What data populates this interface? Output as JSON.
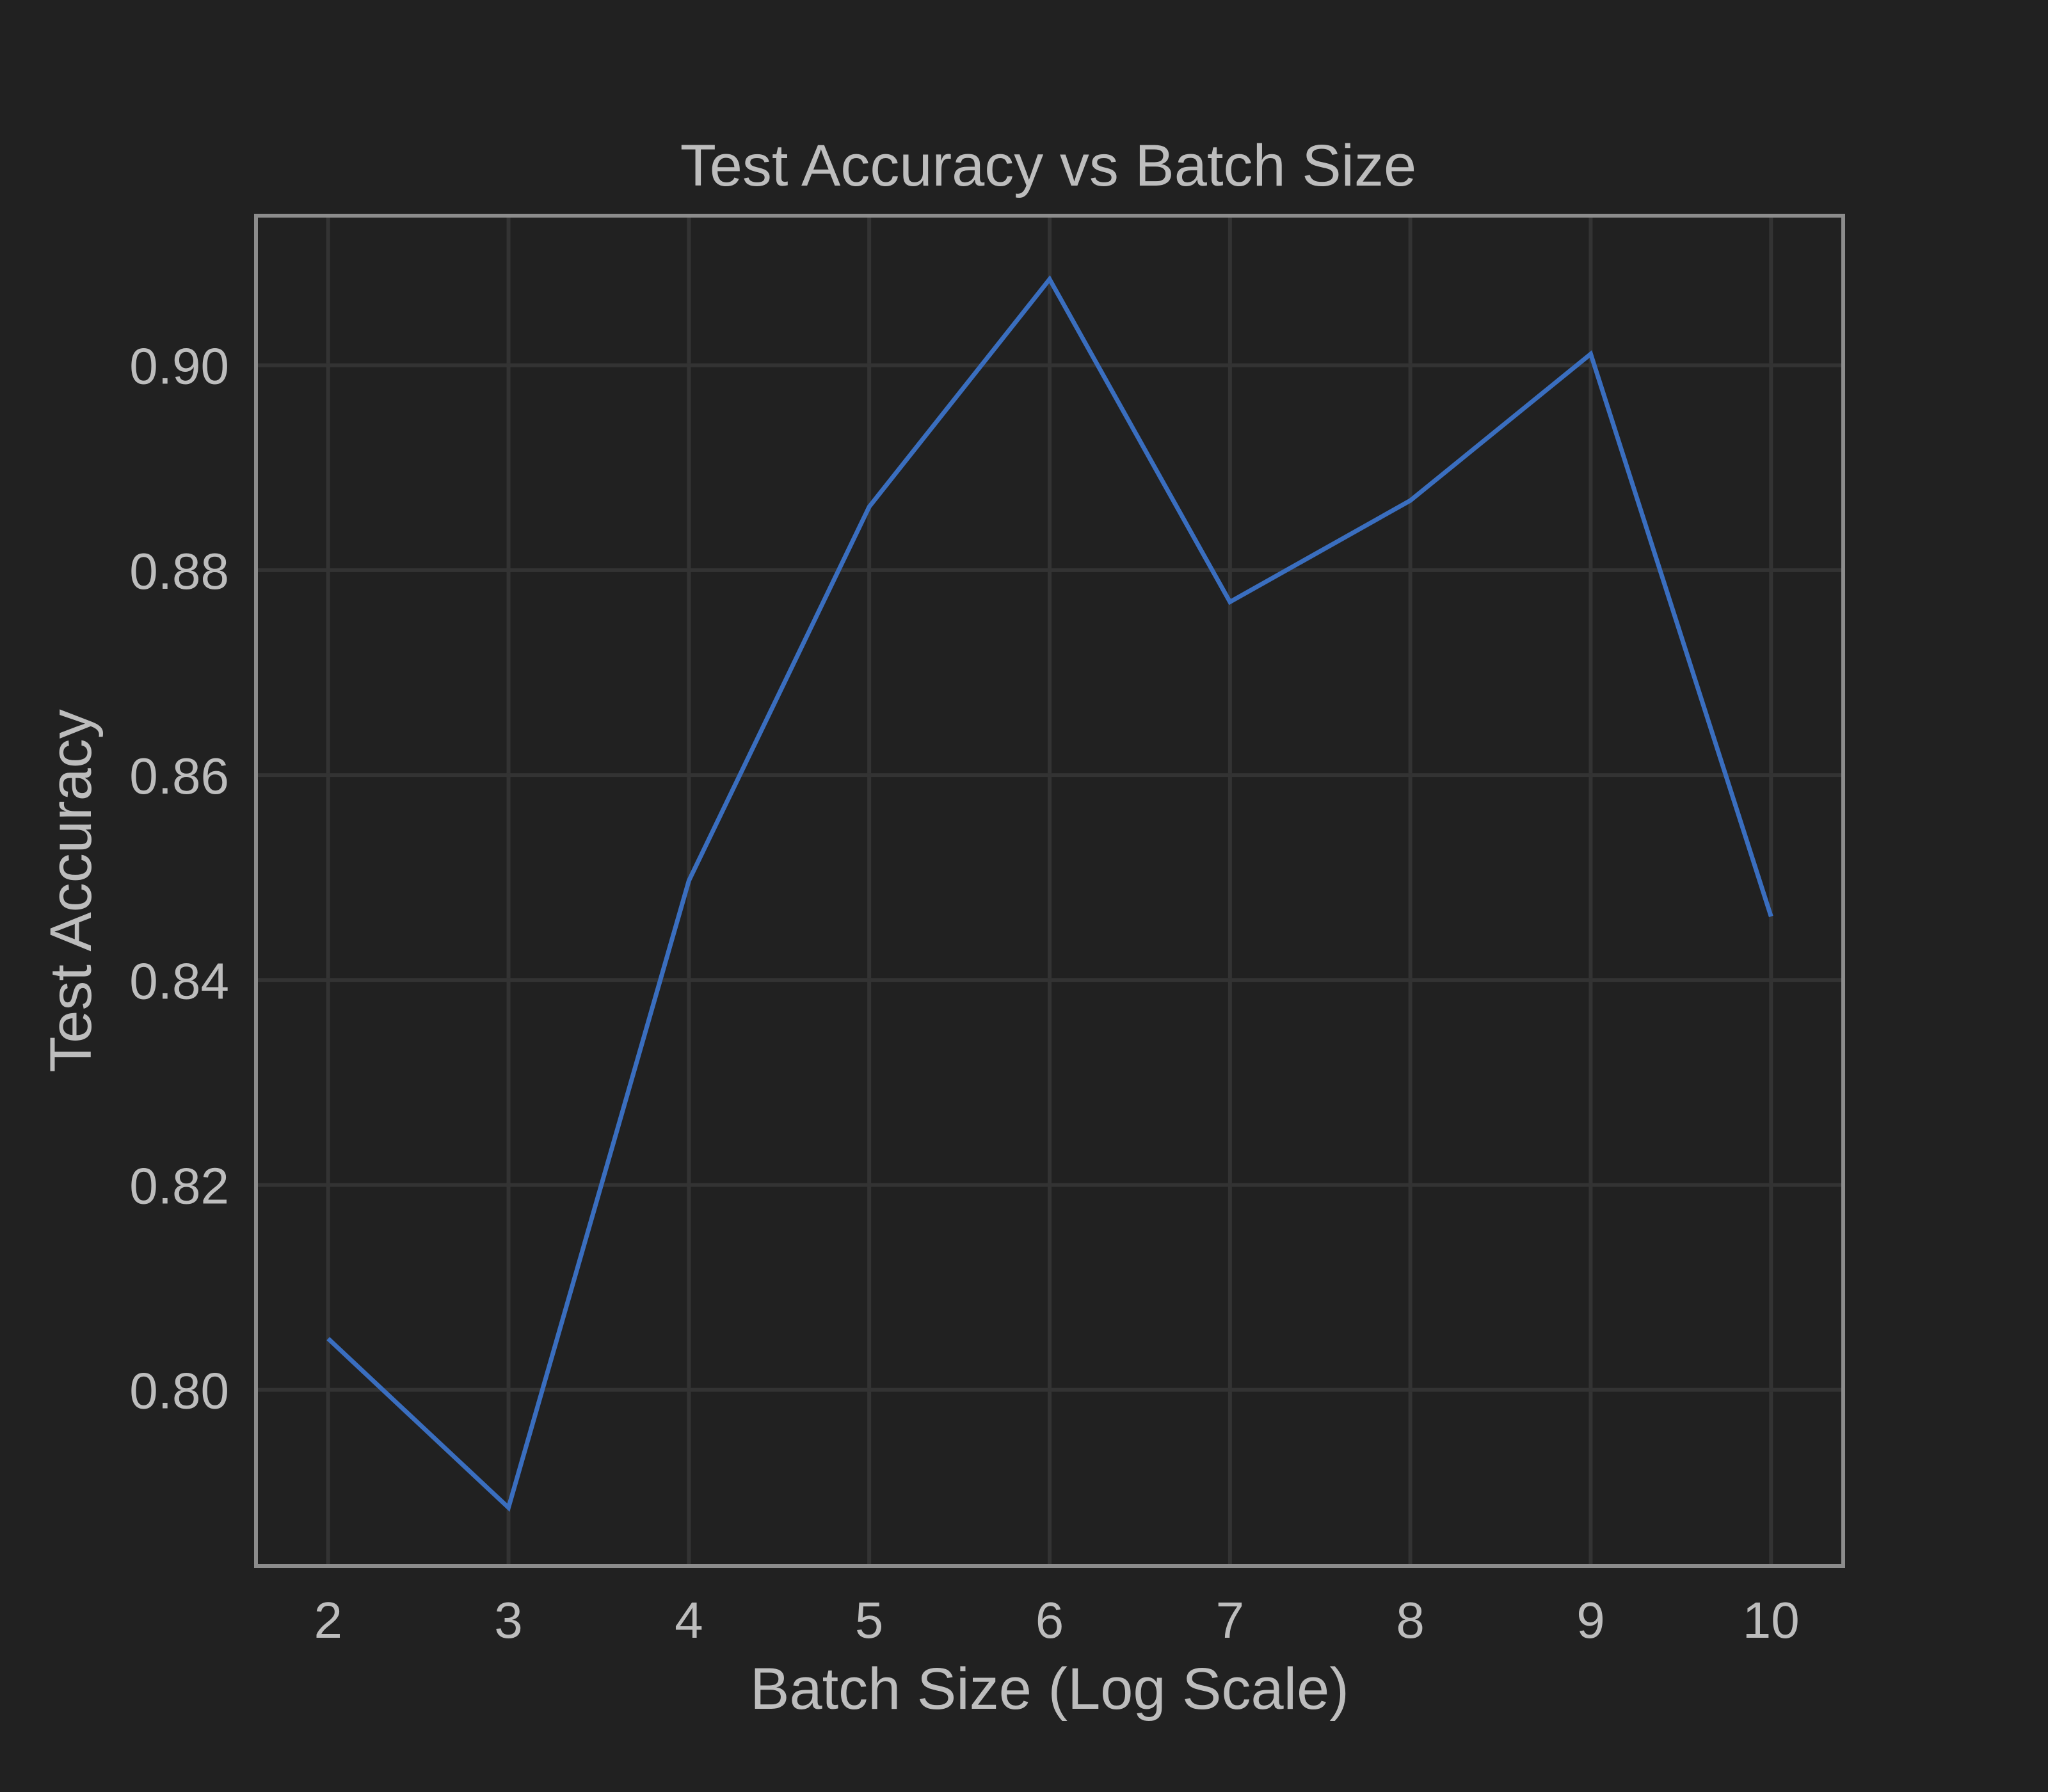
{
  "chart_data": {
    "type": "line",
    "title": "Test Accuracy vs Batch Size",
    "xlabel": "Batch Size (Log Scale)",
    "ylabel": "Test Accuracy",
    "x": [
      2,
      3,
      4,
      5,
      6,
      7,
      8,
      9,
      10
    ],
    "series": [
      {
        "values": [
          0.805,
          0.7885,
          0.8497,
          0.8862,
          0.9084,
          0.8769,
          0.8868,
          0.9011,
          0.8462
        ],
        "color": "#3a6ebf"
      }
    ],
    "x_ticks": [
      2,
      3,
      4,
      5,
      6,
      7,
      8,
      9,
      10
    ],
    "x_tick_labels": [
      "2",
      "3",
      "4",
      "5",
      "6",
      "7",
      "8",
      "9",
      "10"
    ],
    "y_ticks": [
      0.8,
      0.82,
      0.84,
      0.86,
      0.88,
      0.9
    ],
    "y_tick_labels": [
      "0.80",
      "0.82",
      "0.84",
      "0.86",
      "0.88",
      "0.90"
    ],
    "xlim": [
      1.6,
      10.4
    ],
    "ylim": [
      0.7828,
      0.9146
    ],
    "grid": true,
    "legend": false,
    "colors": {
      "background": "#212121",
      "grid": "#333333",
      "frame": "#8c8c8c",
      "text": "#bdbdbd"
    }
  }
}
